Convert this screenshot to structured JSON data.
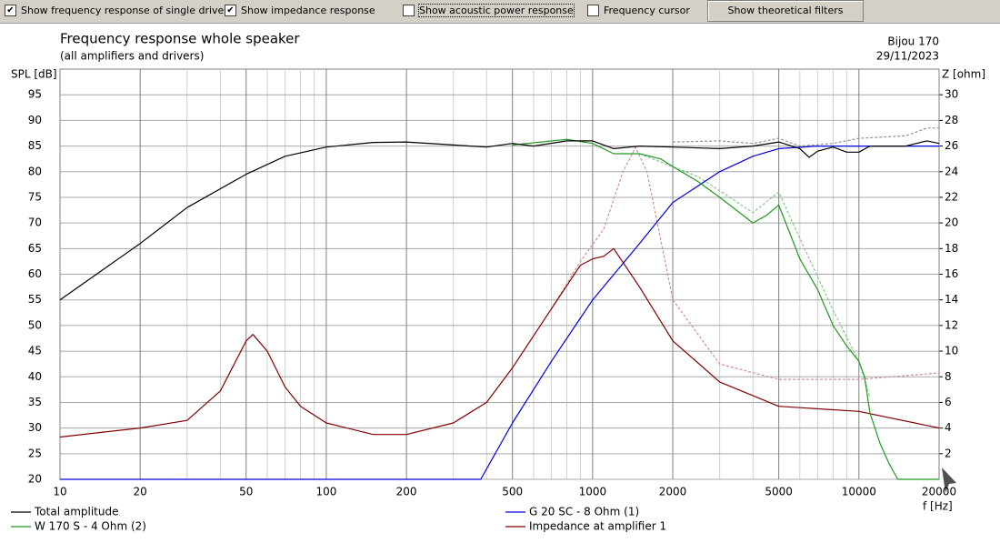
{
  "toolbar": {
    "checkboxes": [
      {
        "label": "Show frequency response of single driver",
        "checked": true
      },
      {
        "label": "Show impedance response",
        "checked": true
      },
      {
        "label": "Show acoustic power response",
        "checked": false
      },
      {
        "label": "Frequency cursor",
        "checked": false
      }
    ],
    "button": "Show theoretical filters"
  },
  "chart_data": {
    "type": "line",
    "title": "Frequency response whole speaker",
    "subtitle": "(all amplifiers and drivers)",
    "project": "Bijou 170",
    "date": "29/11/2023",
    "ylabel": "SPL [dB]",
    "y2label": "Z [ohm]",
    "xlabel": "f [Hz]",
    "xscale": "log",
    "grid": true,
    "xlim": [
      10,
      20000
    ],
    "xticks": [
      10,
      20,
      50,
      100,
      200,
      500,
      1000,
      2000,
      5000,
      10000,
      20000
    ],
    "xgrid_minor": [
      30,
      40,
      60,
      70,
      80,
      90,
      300,
      400,
      600,
      700,
      800,
      900,
      3000,
      4000,
      6000,
      7000,
      8000,
      9000
    ],
    "ylim": [
      20,
      100
    ],
    "yticks": [
      20,
      25,
      30,
      35,
      40,
      45,
      50,
      55,
      60,
      65,
      70,
      75,
      80,
      85,
      90,
      95
    ],
    "y2lim": [
      0,
      32
    ],
    "y2ticks": [
      2,
      4,
      6,
      8,
      10,
      12,
      14,
      16,
      18,
      20,
      22,
      24,
      26,
      28,
      30
    ],
    "series": [
      {
        "name": "Total amplitude",
        "color": "#000000",
        "x": [
          10,
          20,
          30,
          50,
          70,
          100,
          150,
          200,
          300,
          400,
          500,
          600,
          800,
          1000,
          1200,
          1500,
          2000,
          3000,
          4000,
          5000,
          6000,
          6500,
          7000,
          8000,
          9000,
          10000,
          11000,
          15000,
          18000,
          20000
        ],
        "values": [
          55,
          66,
          73,
          79.5,
          83,
          84.8,
          85.7,
          85.8,
          85.2,
          84.8,
          85.5,
          85,
          86,
          86,
          84.5,
          85,
          84.8,
          84.5,
          85,
          85.8,
          84.5,
          82.8,
          84,
          84.8,
          83.8,
          83.8,
          85,
          85,
          86,
          85.5
        ]
      },
      {
        "name": "W 170 S - 4 Ohm (2)",
        "color": "#1f9a1f",
        "x": [
          500,
          800,
          1000,
          1200,
          1500,
          1800,
          2000,
          2500,
          3000,
          4000,
          4500,
          5000,
          5500,
          6000,
          7000,
          8000,
          9000,
          10000,
          10500,
          11000,
          12000,
          13000,
          14000,
          20000
        ],
        "values": [
          85.2,
          86.3,
          85.5,
          83.5,
          83.5,
          82.5,
          81,
          78,
          75,
          70,
          71.5,
          73.5,
          68,
          63,
          57,
          50,
          46,
          43,
          40,
          33,
          27,
          23,
          20,
          20
        ]
      },
      {
        "name": "G 20 SC - 8 Ohm (1)",
        "color": "#0000e0",
        "x": [
          10,
          380,
          500,
          700,
          1000,
          1500,
          2000,
          3000,
          4000,
          5000,
          7000,
          10000,
          20000
        ],
        "values": [
          20,
          20,
          31,
          43,
          55,
          66,
          74,
          80,
          83,
          84.5,
          85,
          85,
          85
        ]
      },
      {
        "name": "Impedance at amplifier 1",
        "color": "#800000",
        "axis": "y2",
        "x": [
          10,
          20,
          30,
          40,
          50,
          53,
          60,
          70,
          80,
          100,
          150,
          200,
          300,
          400,
          500,
          700,
          900,
          1000,
          1100,
          1200,
          1500,
          2000,
          3000,
          5000,
          10000,
          20000
        ],
        "values": [
          3.3,
          4.0,
          4.6,
          6.9,
          10.8,
          11.3,
          10,
          7.2,
          5.7,
          4.4,
          3.5,
          3.5,
          4.4,
          6.0,
          8.7,
          13.3,
          16.7,
          17.2,
          17.4,
          18.0,
          15,
          10.8,
          7.6,
          5.7,
          5.3,
          4.0
        ]
      },
      {
        "color": "#d09090",
        "axis": "y2",
        "dash": true,
        "x": [
          700,
          900,
          1100,
          1300,
          1450,
          1600,
          2000,
          3000,
          5000,
          10000,
          20000
        ],
        "values": [
          13.3,
          17,
          19.5,
          24,
          25.9,
          24,
          14,
          9,
          7.8,
          7.8,
          8.3
        ]
      },
      {
        "color": "#9090a8",
        "dash": true,
        "x": [
          2000,
          3000,
          4000,
          5000,
          6000,
          8000,
          10000,
          15000,
          18000,
          20000
        ],
        "values": [
          85.8,
          86,
          85.5,
          86.5,
          85,
          85.5,
          86.5,
          87,
          88.5,
          88.5
        ]
      },
      {
        "color": "#88c888",
        "dash": true,
        "x": [
          1500,
          2500,
          4000,
          5000,
          6000,
          8000,
          10000,
          11000
        ],
        "values": [
          83.5,
          79,
          72,
          76,
          67,
          53,
          43,
          36
        ]
      }
    ]
  }
}
